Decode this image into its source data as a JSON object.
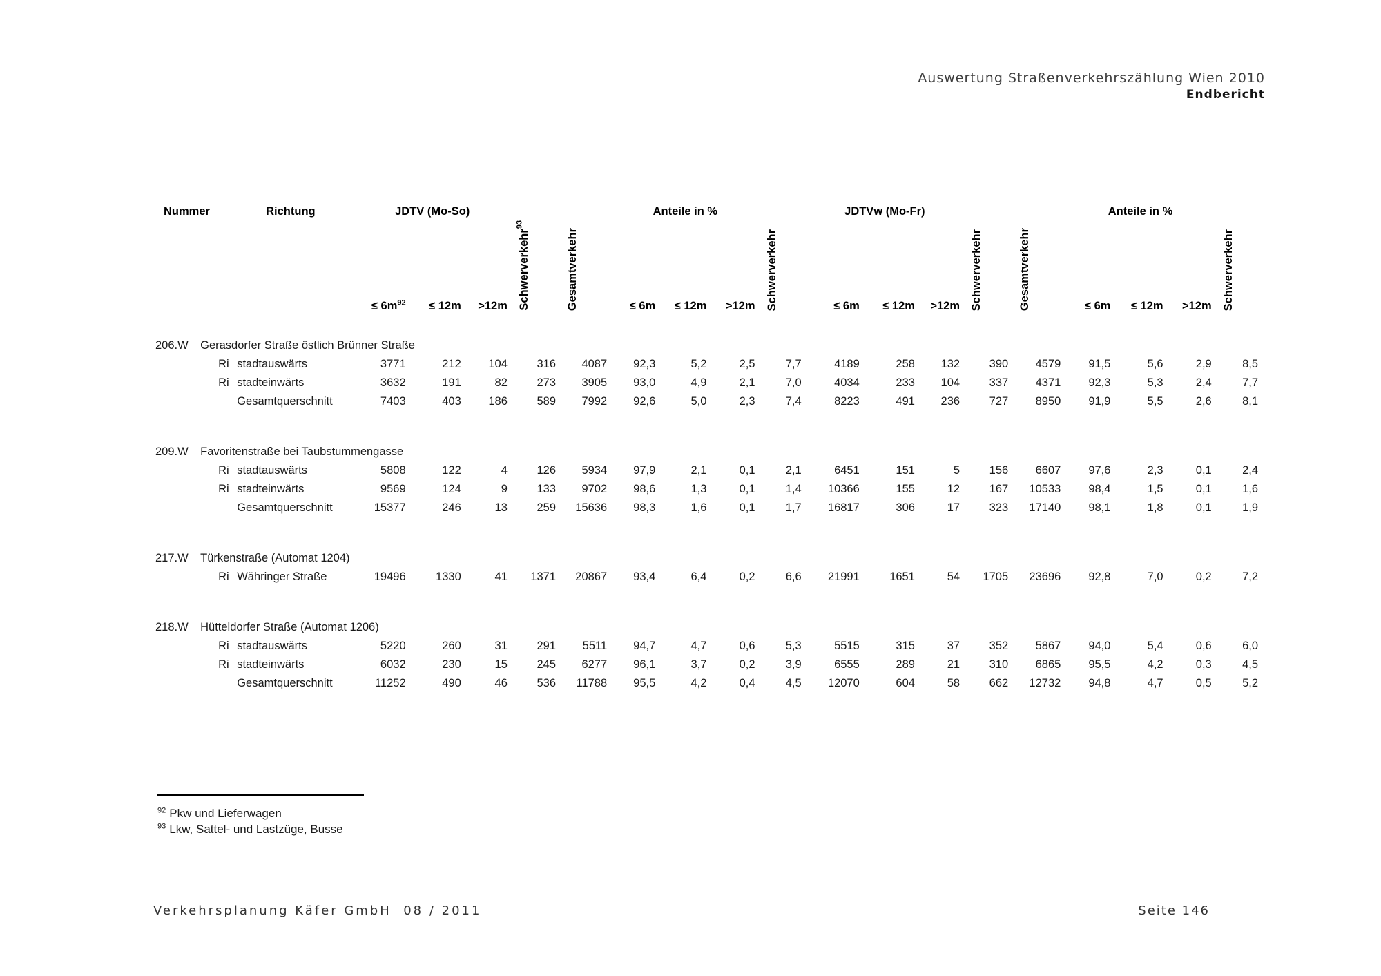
{
  "doc_header": {
    "line1": "Auswertung Straßenverkehrszählung Wien 2010",
    "line2": "Endbericht"
  },
  "table": {
    "headers": {
      "nummer": "Nummer",
      "richtung": "Richtung",
      "group_jdtv": "JDTV (Mo-So)",
      "group_anteile": "Anteile in %",
      "group_jdtvw": "JDTVw (Mo-Fr)",
      "le6m": "≤ 6m",
      "le6m_sup": "92",
      "le12m": "≤ 12m",
      "gt12m": ">12m",
      "schwerverkehr": "Schwerverkehr",
      "schwerverkehr_sup": "93",
      "gesamtverkehr": "Gesamtverkehr"
    },
    "blocks": [
      {
        "number": "206.W",
        "name": "Gerasdorfer Straße östlich Brünner Straße",
        "rows": [
          {
            "ri": "Ri",
            "direction": "stadtauswärts",
            "values": [
              "3771",
              "212",
              "104",
              "316",
              "4087",
              "92,3",
              "5,2",
              "2,5",
              "7,7",
              "4189",
              "258",
              "132",
              "390",
              "4579",
              "91,5",
              "5,6",
              "2,9",
              "8,5"
            ]
          },
          {
            "ri": "Ri",
            "direction": "stadteinwärts",
            "values": [
              "3632",
              "191",
              "82",
              "273",
              "3905",
              "93,0",
              "4,9",
              "2,1",
              "7,0",
              "4034",
              "233",
              "104",
              "337",
              "4371",
              "92,3",
              "5,3",
              "2,4",
              "7,7"
            ]
          },
          {
            "ri": "",
            "direction": "Gesamtquerschnitt",
            "values": [
              "7403",
              "403",
              "186",
              "589",
              "7992",
              "92,6",
              "5,0",
              "2,3",
              "7,4",
              "8223",
              "491",
              "236",
              "727",
              "8950",
              "91,9",
              "5,5",
              "2,6",
              "8,1"
            ]
          }
        ]
      },
      {
        "number": "209.W",
        "name": "Favoritenstraße bei Taubstummengasse",
        "rows": [
          {
            "ri": "Ri",
            "direction": "stadtauswärts",
            "values": [
              "5808",
              "122",
              "4",
              "126",
              "5934",
              "97,9",
              "2,1",
              "0,1",
              "2,1",
              "6451",
              "151",
              "5",
              "156",
              "6607",
              "97,6",
              "2,3",
              "0,1",
              "2,4"
            ]
          },
          {
            "ri": "Ri",
            "direction": "stadteinwärts",
            "values": [
              "9569",
              "124",
              "9",
              "133",
              "9702",
              "98,6",
              "1,3",
              "0,1",
              "1,4",
              "10366",
              "155",
              "12",
              "167",
              "10533",
              "98,4",
              "1,5",
              "0,1",
              "1,6"
            ]
          },
          {
            "ri": "",
            "direction": "Gesamtquerschnitt",
            "values": [
              "15377",
              "246",
              "13",
              "259",
              "15636",
              "98,3",
              "1,6",
              "0,1",
              "1,7",
              "16817",
              "306",
              "17",
              "323",
              "17140",
              "98,1",
              "1,8",
              "0,1",
              "1,9"
            ]
          }
        ]
      },
      {
        "number": "217.W",
        "name": "Türkenstraße (Automat 1204)",
        "rows": [
          {
            "ri": "Ri",
            "direction": "Währinger Straße",
            "values": [
              "19496",
              "1330",
              "41",
              "1371",
              "20867",
              "93,4",
              "6,4",
              "0,2",
              "6,6",
              "21991",
              "1651",
              "54",
              "1705",
              "23696",
              "92,8",
              "7,0",
              "0,2",
              "7,2"
            ]
          }
        ]
      },
      {
        "number": "218.W",
        "name": "Hütteldorfer Straße (Automat 1206)",
        "rows": [
          {
            "ri": "Ri",
            "direction": "stadtauswärts",
            "values": [
              "5220",
              "260",
              "31",
              "291",
              "5511",
              "94,7",
              "4,7",
              "0,6",
              "5,3",
              "5515",
              "315",
              "37",
              "352",
              "5867",
              "94,0",
              "5,4",
              "0,6",
              "6,0"
            ]
          },
          {
            "ri": "Ri",
            "direction": "stadteinwärts",
            "values": [
              "6032",
              "230",
              "15",
              "245",
              "6277",
              "96,1",
              "3,7",
              "0,2",
              "3,9",
              "6555",
              "289",
              "21",
              "310",
              "6865",
              "95,5",
              "4,2",
              "0,3",
              "4,5"
            ]
          },
          {
            "ri": "",
            "direction": "Gesamtquerschnitt",
            "values": [
              "11252",
              "490",
              "46",
              "536",
              "11788",
              "95,5",
              "4,2",
              "0,4",
              "4,5",
              "12070",
              "604",
              "58",
              "662",
              "12732",
              "94,8",
              "4,7",
              "0,5",
              "5,2"
            ]
          }
        ]
      }
    ]
  },
  "footnotes": [
    {
      "sup": "92",
      "text": "Pkw und Lieferwagen"
    },
    {
      "sup": "93",
      "text": "Lkw, Sattel- und Lastzüge, Busse"
    }
  ],
  "footer": {
    "left": "Verkehrsplanung Käfer GmbH  08 / 2011",
    "right": "Seite 146"
  }
}
